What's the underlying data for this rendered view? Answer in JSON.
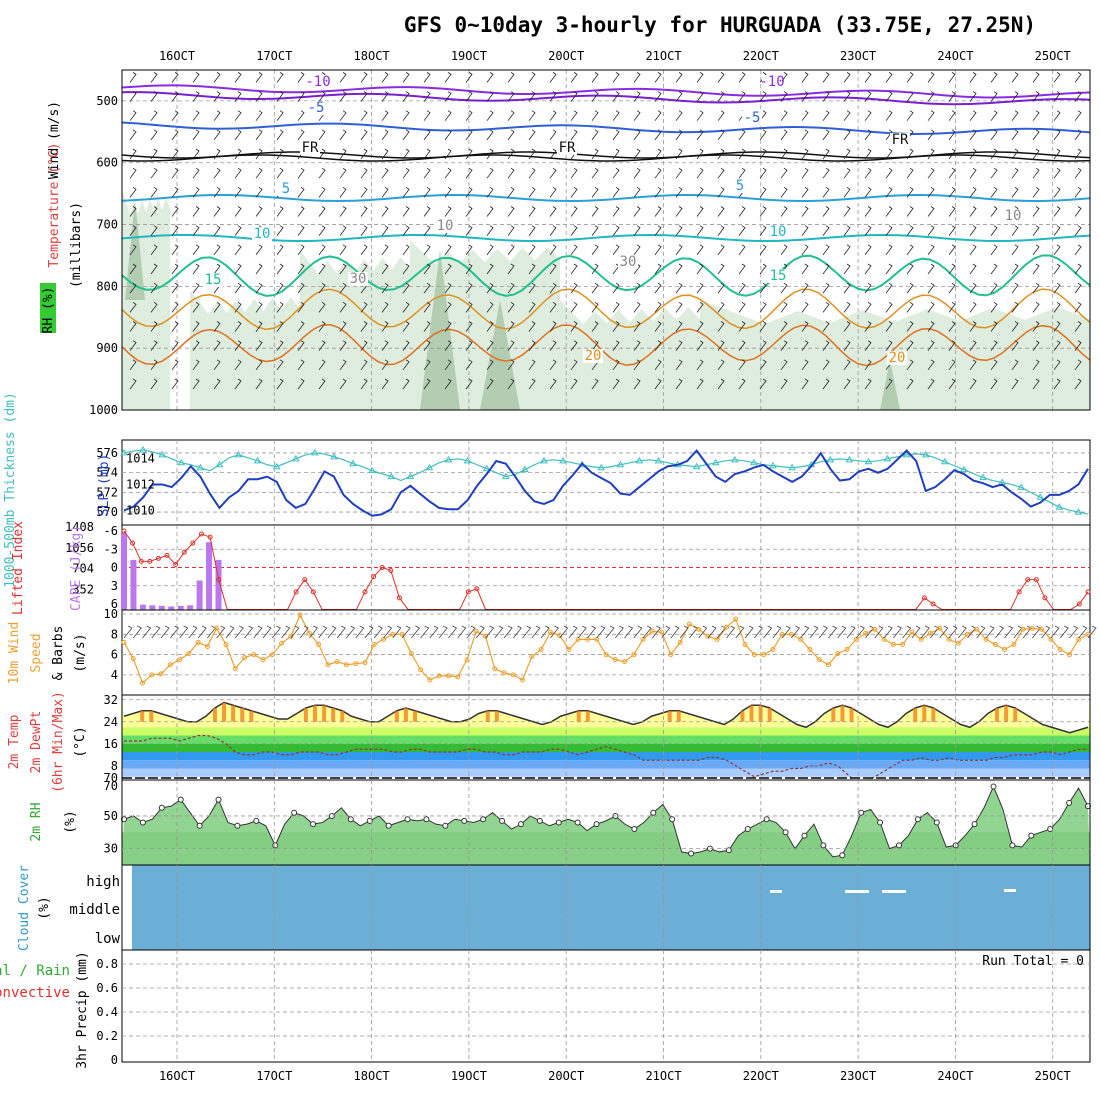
{
  "title": "GFS 0~10day 3-hourly for HURGUADA (33.75E, 27.25N)",
  "dates": [
    "16OCT",
    "17OCT",
    "18OCT",
    "19OCT",
    "20OCT",
    "21OCT",
    "22OCT",
    "23OCT",
    "24OCT",
    "25OCT"
  ],
  "colors": {
    "temp_line": "#333333",
    "dewpt_line": "#8b3a3a",
    "rh_fill": "#7fce7f",
    "cloud": "#6baed6",
    "slp": "#1f3fbf",
    "thick": "#3fbfbf",
    "li": "#e0302a",
    "cape": "#bb77f0",
    "wind": "#f0a030"
  },
  "panels": {
    "sounding": {
      "ylabel_wind": "Wind (m/s)",
      "ylabel_temp": "Temperature (°C)",
      "ylabel_rh": "RH (%)",
      "ylabel_unit": "(millibars)",
      "ticks": [
        "500",
        "600",
        "700",
        "800",
        "900",
        "1000"
      ],
      "isotherm_labels": [
        "-10",
        "-10",
        "-5",
        "-5",
        "FR",
        "FR",
        "FR",
        "5",
        "5",
        "10",
        "10",
        "15",
        "15",
        "20",
        "20",
        "30",
        "30",
        "10",
        "10"
      ]
    },
    "slp": {
      "ylabel_left": "1000-500mb Thickness (dm)",
      "ylabel_right": "SLP (mb)",
      "ticks_left": [
        "576",
        "574",
        "572",
        "570"
      ],
      "ticks_right": [
        "1014",
        "1012",
        "1010"
      ]
    },
    "cape": {
      "ylabel_left": "Lifted Index",
      "ylabel_right": "CAPE (J/kg)",
      "ticks_left": [
        "-6",
        "-3",
        "0",
        "3",
        "6"
      ],
      "ticks_right": [
        "1408",
        "1056",
        "704",
        "352"
      ]
    },
    "wind": {
      "ylabel_a": "10m Wind",
      "ylabel_b": "Speed",
      "ylabel_c": "& Barbs",
      "ylabel_d": "(m/s)",
      "ticks": [
        "10",
        "8",
        "6",
        "4"
      ]
    },
    "temp": {
      "ylabel_a": "2m Temp",
      "ylabel_b": "2m DewPt",
      "ylabel_c": "(6hr Min/Max)",
      "ylabel_d": "(°C)",
      "ticks": [
        "32",
        "24",
        "16",
        "8",
        "70"
      ]
    },
    "rh": {
      "ylabel_a": "2m RH",
      "ylabel_b": "(%)",
      "ticks": [
        "70",
        "50",
        "30"
      ]
    },
    "cloud": {
      "ylabel_a": "Cloud Cover",
      "ylabel_b": "(%)",
      "levels": [
        "high",
        "middle",
        "low"
      ]
    },
    "precip": {
      "ylabel_a": "tal / Rain",
      "ylabel_b": "Convective",
      "ylabel_c": "3hr Precip (mm)",
      "ticks": [
        "0.8",
        "0.6",
        "0.4",
        "0.2",
        "0"
      ],
      "run_total": "Run Total = 0"
    }
  },
  "chart_data": [
    {
      "type": "line",
      "name": "SLP",
      "units": "mb",
      "x_step_hours": 3,
      "values": [
        1010,
        1010.3,
        1011,
        1012,
        1012,
        1011.8,
        1012.5,
        1013.4,
        1012.6,
        1011.3,
        1010.2,
        1011,
        1011.5,
        1012.4,
        1012.4,
        1012.6,
        1012.2,
        1010.8,
        1010.2,
        1010.5,
        1011.7,
        1013,
        1012.6,
        1011.2,
        1010.5,
        1010,
        1009.6,
        1009.7,
        1010.1,
        1011.4,
        1011.9,
        1011.3,
        1010.7,
        1010.2,
        1010.1,
        1010.1,
        1010.8,
        1011.9,
        1012.8,
        1013.8,
        1013.6,
        1012.6,
        1011.5,
        1010.7,
        1010.5,
        1010.8,
        1011.9,
        1012.7,
        1013.6,
        1012.9,
        1012.5,
        1012.1,
        1011.3,
        1011.2,
        1011.8,
        1012.4,
        1013,
        1013.4,
        1013.5,
        1013.8,
        1014.6,
        1013.6,
        1012.6,
        1012.2,
        1012.8,
        1013,
        1013.3,
        1013.5,
        1013,
        1012.6,
        1012.2,
        1012.6,
        1013.4,
        1014.4,
        1013.2,
        1012.3,
        1012.4,
        1013,
        1013.2,
        1012.9,
        1013.2,
        1013.9,
        1014.6,
        1013.8,
        1011.5,
        1011.8,
        1012.4,
        1013.1,
        1012.8,
        1012.3,
        1012.1,
        1011.8,
        1012,
        1011.4,
        1010.9,
        1010.3,
        1010.6,
        1011.2,
        1011.2,
        1011.5,
        1012,
        1013.2
      ]
    },
    {
      "type": "line",
      "name": "1000-500mb Thickness",
      "units": "dm",
      "x_step_hours": 3,
      "values": [
        576,
        576.2,
        576.3,
        576.1,
        575.8,
        575.4,
        575,
        574.8,
        574.5,
        574.2,
        574.8,
        575.5,
        575.8,
        575.5,
        575.2,
        574.8,
        574.6,
        575,
        575.4,
        575.8,
        576,
        575.9,
        575.6,
        575.3,
        574.9,
        574.6,
        574.2,
        573.9,
        573.6,
        573.2,
        573.6,
        574,
        574.5,
        575,
        575.3,
        575.4,
        575.2,
        574.8,
        574.4,
        574,
        573.6,
        573.8,
        574.3,
        574.8,
        575.2,
        575.3,
        575.2,
        575,
        574.8,
        574.6,
        574.5,
        574.6,
        574.8,
        575,
        575.2,
        575.3,
        575.2,
        575,
        574.8,
        574.7,
        574.6,
        574.8,
        575,
        575.2,
        575.3,
        575.2,
        575,
        574.8,
        574.7,
        574.6,
        574.5,
        574.6,
        574.8,
        575.1,
        575.3,
        575.4,
        575.3,
        575.2,
        575.1,
        575.2,
        575.4,
        575.6,
        575.8,
        575.9,
        575.8,
        575.5,
        575.1,
        574.7,
        574.3,
        573.9,
        573.5,
        573.2,
        573,
        572.8,
        572.5,
        572,
        571.5,
        571,
        570.5,
        570.2,
        570,
        569.8
      ]
    },
    {
      "type": "bar",
      "name": "CAPE",
      "units": "J/kg",
      "x_step_hours": 3,
      "values": [
        1300,
        850,
        90,
        80,
        70,
        60,
        70,
        80,
        500,
        1150,
        850,
        0,
        0,
        0,
        0,
        0,
        0,
        0,
        0,
        0,
        0,
        0,
        0,
        0,
        0,
        0,
        0,
        0,
        0,
        0,
        0,
        0,
        0,
        0,
        0,
        0,
        0,
        0,
        0,
        0,
        0,
        0,
        0,
        0,
        0,
        0,
        0,
        0,
        0,
        0,
        0,
        0,
        0,
        0,
        0,
        0,
        0,
        0,
        0,
        0,
        0,
        0,
        0,
        0,
        0,
        0,
        0,
        0,
        0,
        0,
        0,
        0,
        0,
        0,
        0,
        0,
        0,
        0,
        0,
        0,
        0,
        0,
        0,
        0,
        0,
        0,
        0,
        0,
        0,
        0,
        0,
        0,
        0,
        0,
        0,
        0,
        0,
        0,
        0,
        0,
        0,
        0,
        0
      ]
    },
    {
      "type": "line",
      "name": "Lifted Index",
      "units": "",
      "x_step_hours": 3,
      "values": [
        -6,
        -4,
        -1,
        -1,
        -1.5,
        -2,
        -0.5,
        -2.5,
        -4,
        -5.5,
        -5,
        2,
        7,
        7,
        7,
        7,
        7,
        7,
        7,
        7,
        4,
        2,
        4,
        7,
        7,
        7,
        7,
        7,
        4,
        1.5,
        0,
        0.5,
        5,
        7,
        7,
        7,
        7,
        7,
        7,
        7,
        4,
        3.5,
        7,
        7,
        7,
        7,
        7,
        7,
        7,
        7,
        7,
        7,
        7,
        7,
        7,
        7,
        7,
        7,
        7,
        7,
        7,
        7,
        7,
        7,
        7,
        7,
        7,
        7,
        7,
        7,
        7,
        7,
        7,
        7,
        7,
        7,
        7,
        7,
        7,
        7,
        7,
        7,
        7,
        7,
        7,
        7,
        7,
        7,
        7,
        7,
        7,
        7,
        7,
        5,
        6,
        7,
        7,
        7,
        7,
        7,
        7,
        7,
        7,
        7,
        4,
        2,
        2,
        5,
        7,
        7,
        7,
        6,
        4
      ]
    },
    {
      "type": "line",
      "name": "10m Wind Speed",
      "units": "m/s",
      "x_step_hours": 3,
      "values": [
        7.2,
        5.6,
        3.2,
        4,
        4.1,
        5,
        5.5,
        6.1,
        7.2,
        6.8,
        8.6,
        7,
        4.6,
        5.7,
        6,
        5.5,
        6,
        7.1,
        7.8,
        9.9,
        8.1,
        7,
        5,
        5.3,
        5,
        5.1,
        5.2,
        7,
        7.5,
        8,
        8,
        6.1,
        4.5,
        3.5,
        3.9,
        3.9,
        3.8,
        5.5,
        8.3,
        7.8,
        4.6,
        4.2,
        4,
        3.5,
        5.8,
        6.5,
        8.2,
        7.9,
        6.5,
        7.5,
        7.5,
        7.5,
        6,
        5.5,
        5.3,
        6,
        7.5,
        8.3,
        8.2,
        6,
        7.2,
        9,
        8.5,
        7.8,
        7.5,
        8.7,
        9.5,
        7,
        6,
        6,
        6.5,
        8,
        8,
        7.5,
        6.5,
        5.5,
        5,
        6.1,
        6.5,
        7.5,
        8.1,
        8.5,
        7.5,
        7,
        7,
        8.2,
        7.5,
        8.1,
        8.6,
        7.5,
        7.1,
        8,
        8.5,
        7.5,
        7,
        6.5,
        7,
        8.5,
        8.6,
        8.5,
        7.5,
        6.5,
        6,
        7.5,
        8
      ]
    },
    {
      "type": "area",
      "name": "2m Temp",
      "units": "°C",
      "x_step_hours": 3,
      "values": [
        26,
        27,
        28,
        28,
        27,
        26,
        25,
        24,
        24,
        26,
        29,
        31,
        30,
        29,
        28,
        27,
        26,
        25,
        25,
        27,
        29,
        30,
        30,
        29,
        28,
        26,
        25,
        24,
        24,
        26,
        28,
        29,
        28,
        27,
        26,
        25,
        24,
        24,
        25,
        27,
        28,
        28,
        27,
        26,
        25,
        24,
        23,
        24,
        26,
        27,
        28,
        28,
        27,
        26,
        25,
        24,
        23,
        24,
        26,
        27,
        28,
        28,
        27,
        26,
        25,
        24,
        23,
        25,
        28,
        30,
        30,
        29,
        27,
        25,
        23,
        22,
        24,
        27,
        29,
        30,
        29,
        27,
        25,
        23,
        22,
        24,
        27,
        29,
        30,
        29,
        27,
        25,
        23,
        22,
        24,
        27,
        29,
        30,
        29,
        27,
        25,
        23,
        22,
        21,
        20,
        21,
        22
      ]
    },
    {
      "type": "line",
      "name": "2m DewPt",
      "units": "°C",
      "x_step_hours": 3,
      "values": [
        17,
        17,
        17,
        18,
        18,
        18,
        17,
        18,
        19,
        19,
        18,
        16,
        13,
        12,
        12,
        13,
        13,
        12,
        12,
        13,
        13,
        13,
        12,
        12,
        13,
        14,
        14,
        14,
        14,
        13,
        13,
        14,
        14,
        13,
        13,
        13,
        13,
        14,
        14,
        13,
        13,
        12,
        12,
        13,
        13,
        13,
        14,
        14,
        13,
        12,
        13,
        14,
        15,
        14,
        13,
        12,
        10,
        10,
        10,
        10,
        10,
        10,
        10,
        11,
        11,
        10,
        8,
        6,
        4,
        5,
        6,
        6,
        7,
        7,
        8,
        8,
        9,
        8,
        5,
        2,
        2,
        4,
        6,
        8,
        10,
        10,
        11,
        10,
        10,
        11,
        10,
        10,
        10,
        10,
        11,
        11,
        12,
        12,
        12,
        13,
        13,
        12,
        13,
        14,
        14
      ]
    },
    {
      "type": "area",
      "name": "2m RH",
      "units": "%",
      "x_step_hours": 3,
      "values": [
        48,
        50,
        46,
        48,
        55,
        56,
        60,
        52,
        44,
        50,
        60,
        46,
        44,
        45,
        47,
        44,
        32,
        45,
        52,
        50,
        45,
        46,
        50,
        55,
        48,
        44,
        47,
        50,
        44,
        46,
        48,
        47,
        48,
        45,
        44,
        48,
        47,
        46,
        48,
        52,
        47,
        42,
        45,
        50,
        47,
        44,
        46,
        48,
        46,
        41,
        45,
        47,
        50,
        45,
        42,
        46,
        52,
        57,
        48,
        28,
        27,
        28,
        30,
        28,
        29,
        38,
        42,
        45,
        48,
        46,
        40,
        30,
        38,
        45,
        32,
        25,
        26,
        38,
        52,
        54,
        46,
        30,
        32,
        38,
        48,
        52,
        46,
        31,
        32,
        38,
        45,
        55,
        68,
        54,
        32,
        31,
        38,
        40,
        42,
        48,
        58,
        67,
        56
      ]
    },
    {
      "type": "heatmap",
      "name": "Cloud Cover",
      "levels": [
        "high",
        "middle",
        "low"
      ],
      "note": "overcast blue background with small high cloud gaps"
    },
    {
      "type": "bar",
      "name": "3hr Precip",
      "units": "mm",
      "values": [
        0
      ],
      "run_total": "Run Total = 0",
      "ylim": [
        0,
        0.9
      ]
    }
  ]
}
